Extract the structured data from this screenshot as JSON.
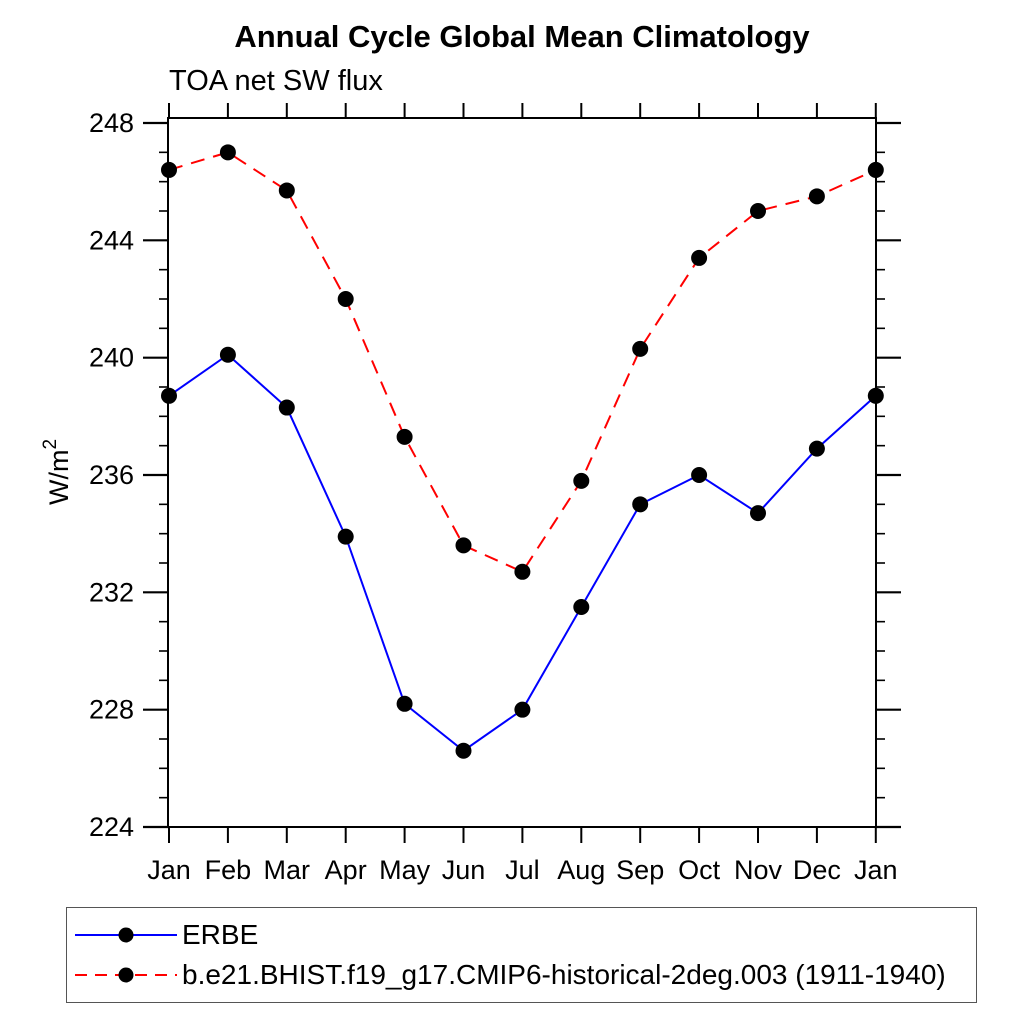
{
  "chart": {
    "title": "Annual Cycle Global Mean Climatology",
    "subtitle": "TOA net SW flux"
  },
  "chart_data": {
    "type": "line",
    "title": "Annual Cycle Global Mean Climatology",
    "subtitle": "TOA net SW flux",
    "xlabel": "",
    "ylabel": "W/m²",
    "ylabel_base": "W/m",
    "ylabel_exp": "2",
    "categories": [
      "Jan",
      "Feb",
      "Mar",
      "Apr",
      "May",
      "Jun",
      "Jul",
      "Aug",
      "Sep",
      "Oct",
      "Nov",
      "Dec",
      "Jan"
    ],
    "yticks": [
      224,
      228,
      232,
      236,
      240,
      244,
      248
    ],
    "ylim": [
      224,
      248.2
    ],
    "minor_tick_step": 1,
    "grid": false,
    "legend_position": "bottom",
    "marker": {
      "shape": "circle",
      "color": "#000000",
      "radius_px": 8
    },
    "axis_color": "#000000",
    "series": [
      {
        "name": "ERBE",
        "color": "#0000ff",
        "line_style": "solid",
        "values": [
          238.7,
          240.1,
          238.3,
          233.9,
          228.2,
          226.6,
          228.0,
          231.5,
          235.0,
          236.0,
          234.7,
          236.9,
          238.7
        ]
      },
      {
        "name": "b.e21.BHIST.f19_g17.CMIP6-historical-2deg.003 (1911-1940)",
        "color": "#ff0000",
        "line_style": "dashed",
        "values": [
          246.4,
          247.0,
          245.7,
          242.0,
          237.3,
          233.6,
          232.7,
          235.8,
          240.3,
          243.4,
          245.0,
          245.5,
          246.4
        ]
      }
    ]
  }
}
